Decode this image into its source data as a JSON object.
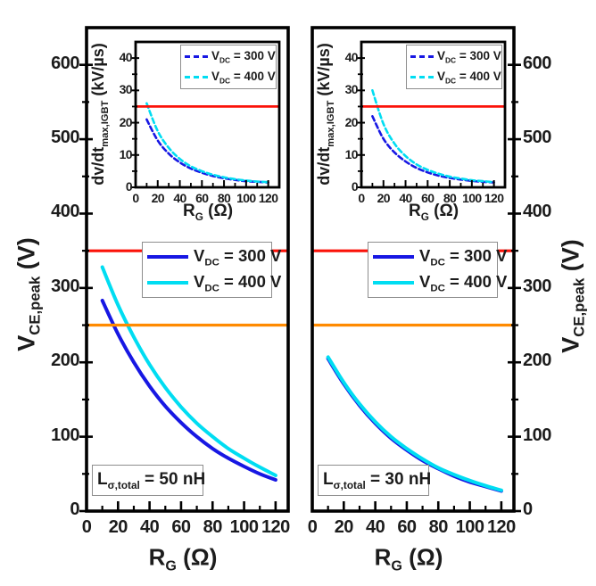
{
  "colors": {
    "blue": "#1717e3",
    "cyan": "#00ddf2",
    "red": "#fb1209",
    "orange": "#ff8a00",
    "frame": "#000000"
  },
  "labels": {
    "y_axis": {
      "base": "V",
      "sub": "CE,peak",
      "unit": " (V)"
    },
    "x_axis": {
      "base": "R",
      "sub": "G",
      "unit": " (Ω)"
    },
    "inset_y": {
      "base": "dv/dt",
      "sub": "max,IGBT",
      "unit": " (kV/µs)"
    }
  },
  "legend": {
    "entries": [
      {
        "base": "V",
        "sub": "DC",
        "rest": " = 300 V"
      },
      {
        "base": "V",
        "sub": "DC",
        "rest": " = 400 V"
      }
    ]
  },
  "panels": [
    {
      "annotation": {
        "base": "L",
        "sub": "σ,total",
        "rest": " = 50 nH"
      }
    },
    {
      "annotation": {
        "base": "L",
        "sub": "σ,total",
        "rest": " = 30 nH"
      }
    }
  ],
  "chart_data": [
    {
      "id": "left-main",
      "type": "line",
      "title": "",
      "xlabel": "R_G (Ω)",
      "ylabel": "V_CE,peak (V)",
      "xlim": [
        0,
        128
      ],
      "ylim": [
        0,
        650
      ],
      "x_ticks": [
        0,
        20,
        40,
        60,
        80,
        100,
        120
      ],
      "y_ticks": [
        0,
        100,
        200,
        300,
        400,
        500,
        600
      ],
      "grid": false,
      "legend_position": "upper center",
      "annotation": "L_σ,total = 50 nH",
      "x": [
        10,
        20,
        30,
        40,
        50,
        60,
        70,
        80,
        90,
        100,
        110,
        120
      ],
      "series": [
        {
          "name": "V_DC = 300 V",
          "color": "#1717e3",
          "style": "solid",
          "values": [
            283,
            238,
            200,
            168,
            141,
            119,
            100,
            84,
            71,
            60,
            50,
            42
          ]
        },
        {
          "name": "V_DC = 400 V",
          "color": "#00ddf2",
          "style": "solid",
          "values": [
            328,
            277,
            234,
            197,
            166,
            140,
            118,
            100,
            84,
            71,
            59,
            48
          ]
        }
      ],
      "hlines": [
        {
          "y": 350,
          "color": "#fb1209"
        },
        {
          "y": 250,
          "color": "#ff8a00"
        }
      ]
    },
    {
      "id": "left-inset",
      "type": "line",
      "title": "",
      "xlabel": "R_G (Ω)",
      "ylabel": "dv/dt_max,IGBT (kV/µs)",
      "xlim": [
        0,
        130
      ],
      "ylim": [
        0,
        45
      ],
      "x_ticks": [
        0,
        20,
        40,
        60,
        80,
        100,
        120
      ],
      "y_ticks": [
        0,
        10,
        20,
        30,
        40
      ],
      "grid": false,
      "legend_position": "upper right",
      "x": [
        10,
        20,
        30,
        40,
        50,
        60,
        70,
        80,
        90,
        100,
        110,
        120
      ],
      "series": [
        {
          "name": "V_DC = 300 V",
          "color": "#1717e3",
          "style": "dashed",
          "values": [
            21,
            14.5,
            10.4,
            7.7,
            5.8,
            4.5,
            3.5,
            2.8,
            2.3,
            1.9,
            1.7,
            1.5
          ]
        },
        {
          "name": "V_DC = 400 V",
          "color": "#00ddf2",
          "style": "dashed",
          "values": [
            26,
            17.4,
            12.2,
            8.8,
            6.5,
            5.0,
            3.9,
            3.1,
            2.5,
            2.1,
            1.8,
            1.6
          ]
        }
      ],
      "hlines": [
        {
          "y": 25,
          "color": "#fb1209"
        }
      ]
    },
    {
      "id": "right-main",
      "type": "line",
      "title": "",
      "xlabel": "R_G (Ω)",
      "ylabel": "V_CE,peak (V)",
      "xlim": [
        0,
        128
      ],
      "ylim": [
        0,
        650
      ],
      "x_ticks": [
        0,
        20,
        40,
        60,
        80,
        100,
        120
      ],
      "y_ticks": [
        0,
        100,
        200,
        300,
        400,
        500,
        600
      ],
      "grid": false,
      "legend_position": "upper center",
      "annotation": "L_σ,total = 30 nH",
      "x": [
        10,
        20,
        30,
        40,
        50,
        60,
        70,
        80,
        90,
        100,
        110,
        120
      ],
      "series": [
        {
          "name": "V_DC = 300 V",
          "color": "#1717e3",
          "style": "solid",
          "values": [
            205,
            171,
            142,
            118,
            98,
            82,
            68,
            57,
            47,
            39,
            33,
            27
          ]
        },
        {
          "name": "V_DC = 400 V",
          "color": "#00ddf2",
          "style": "solid",
          "values": [
            207,
            173,
            144,
            120,
            100,
            84,
            70,
            58,
            49,
            41,
            34,
            28
          ]
        }
      ],
      "hlines": [
        {
          "y": 350,
          "color": "#fb1209"
        },
        {
          "y": 250,
          "color": "#ff8a00"
        }
      ]
    },
    {
      "id": "right-inset",
      "type": "line",
      "title": "",
      "xlabel": "R_G (Ω)",
      "ylabel": "dv/dt_max,IGBT (kV/µs)",
      "xlim": [
        0,
        130
      ],
      "ylim": [
        0,
        45
      ],
      "x_ticks": [
        0,
        20,
        40,
        60,
        80,
        100,
        120
      ],
      "y_ticks": [
        0,
        10,
        20,
        30,
        40
      ],
      "grid": false,
      "legend_position": "upper right",
      "x": [
        10,
        20,
        30,
        40,
        50,
        60,
        70,
        80,
        90,
        100,
        110,
        120
      ],
      "series": [
        {
          "name": "V_DC = 300 V",
          "color": "#1717e3",
          "style": "dashed",
          "values": [
            22,
            15,
            10.8,
            8.0,
            6.0,
            4.6,
            3.6,
            2.9,
            2.4,
            2.0,
            1.7,
            1.5
          ]
        },
        {
          "name": "V_DC = 400 V",
          "color": "#00ddf2",
          "style": "dashed",
          "values": [
            30,
            19.6,
            13.5,
            9.7,
            7.1,
            5.4,
            4.2,
            3.3,
            2.7,
            2.2,
            1.9,
            1.6
          ]
        }
      ],
      "hlines": [
        {
          "y": 25,
          "color": "#fb1209"
        }
      ]
    }
  ]
}
